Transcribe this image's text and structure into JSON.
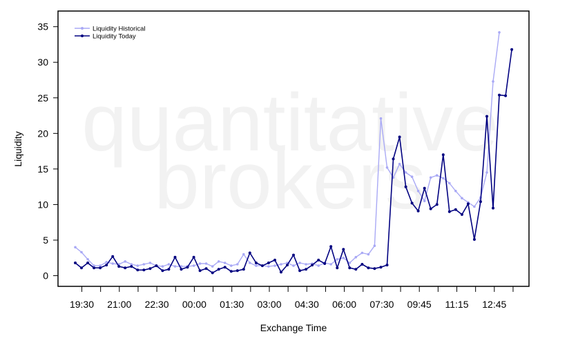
{
  "watermark": {
    "line1": "quantitative",
    "line2": "brokers"
  },
  "chart_data": {
    "type": "line",
    "xlabel": "Exchange Time",
    "ylabel": "Liquidity",
    "ylim": [
      -1.5,
      37.2
    ],
    "yticks": [
      0,
      5,
      10,
      15,
      20,
      25,
      30,
      35
    ],
    "xtick_labels": [
      "19:30",
      "21:00",
      "22:30",
      "00:00",
      "01:30",
      "03:00",
      "04:30",
      "06:00",
      "07:30",
      "09:45",
      "11:15",
      "12:45"
    ],
    "legend_position": "top-left",
    "series": [
      {
        "name": "Liquidity Historical",
        "color": "#a9a9f5",
        "values": [
          4.0,
          3.3,
          2.3,
          1.4,
          1.4,
          1.9,
          1.7,
          1.6,
          2.0,
          1.6,
          1.4,
          1.6,
          1.8,
          1.4,
          1.3,
          1.6,
          1.3,
          1.3,
          1.3,
          1.4,
          1.7,
          1.7,
          1.3,
          2.0,
          1.8,
          1.4,
          1.6,
          3.0,
          1.8,
          1.4,
          1.4,
          1.3,
          1.4,
          1.6,
          1.8,
          1.4,
          1.8,
          1.6,
          1.7,
          1.4,
          1.8,
          1.6,
          2.3,
          2.5,
          1.8,
          2.6,
          3.2,
          3.0,
          4.2,
          22.1,
          15.2,
          13.8,
          15.7,
          14.5,
          13.9,
          11.9,
          10.5,
          13.8,
          14.1,
          13.7,
          13.0,
          11.9,
          10.9,
          10.3,
          9.7,
          11.0,
          14.5,
          27.3,
          34.2
        ]
      },
      {
        "name": "Liquidity Today",
        "color": "#000080",
        "values": [
          1.8,
          1.1,
          1.8,
          1.1,
          1.1,
          1.5,
          2.7,
          1.3,
          1.1,
          1.3,
          0.8,
          0.8,
          1.0,
          1.4,
          0.7,
          0.9,
          2.6,
          0.9,
          1.2,
          2.6,
          0.7,
          1.0,
          0.4,
          0.9,
          1.2,
          0.6,
          0.7,
          0.9,
          3.2,
          1.8,
          1.4,
          1.8,
          2.2,
          0.5,
          1.5,
          2.9,
          0.7,
          0.9,
          1.5,
          2.2,
          1.7,
          4.1,
          1.1,
          3.7,
          1.1,
          0.9,
          1.6,
          1.1,
          1.0,
          1.2,
          1.5,
          16.4,
          19.5,
          12.5,
          10.2,
          9.1,
          12.3,
          9.4,
          10.0,
          17.0,
          9.0,
          9.3,
          8.6,
          10.1,
          5.1,
          10.4,
          22.4,
          9.5,
          25.4,
          25.3,
          31.8
        ]
      }
    ]
  }
}
